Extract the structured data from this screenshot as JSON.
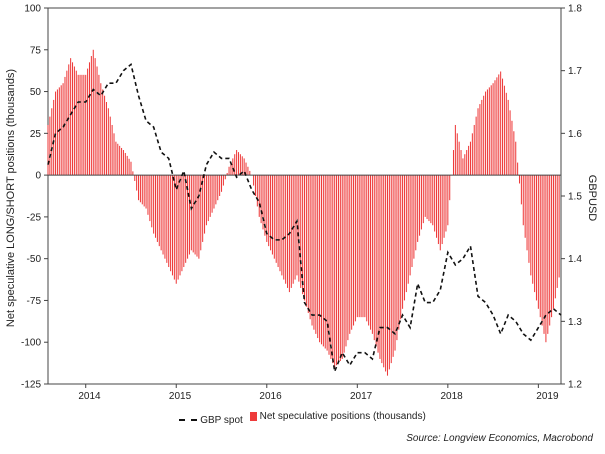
{
  "chart_data": {
    "type": "bar+line",
    "y_left": {
      "label": "Net speculative LONG/SHORT positions (thousands)",
      "ylim": [
        -125,
        100
      ],
      "ticks": [
        100,
        75,
        50,
        25,
        0,
        -25,
        -50,
        -75,
        -100,
        -125
      ],
      "tick_labels": [
        "100",
        "75",
        "50",
        "25",
        "0",
        "-25",
        "-50",
        "-75",
        "-100",
        "-125"
      ]
    },
    "y_right": {
      "label": "GBPUSD",
      "ylim": [
        1.2,
        1.8
      ],
      "ticks": [
        1.8,
        1.7,
        1.6,
        1.5,
        1.4,
        1.3,
        1.2
      ],
      "tick_labels": [
        "1.8",
        "1.7",
        "1.6",
        "1.5",
        "1.4",
        "1.3",
        "1.2"
      ]
    },
    "x_axis": {
      "range": [
        "2013-08",
        "2019-04"
      ],
      "ticks": [
        "2014",
        "2015",
        "2016",
        "2017",
        "2018",
        "2019"
      ],
      "year_start_ticks": [
        "2014-01",
        "2015-01",
        "2016-01",
        "2017-01",
        "2018-01",
        "2019-01"
      ]
    },
    "series": [
      {
        "name": "Net speculative positions (thousands)",
        "kind": "bar",
        "axis": "left",
        "color": "#ee3b3b",
        "points": [
          [
            "2013-08",
            30
          ],
          [
            "2013-09",
            50
          ],
          [
            "2013-10",
            55
          ],
          [
            "2013-11",
            70
          ],
          [
            "2013-12",
            60
          ],
          [
            "2014-01",
            60
          ],
          [
            "2014-02",
            75
          ],
          [
            "2014-03",
            55
          ],
          [
            "2014-04",
            40
          ],
          [
            "2014-05",
            20
          ],
          [
            "2014-06",
            15
          ],
          [
            "2014-07",
            8
          ],
          [
            "2014-08",
            -15
          ],
          [
            "2014-09",
            -20
          ],
          [
            "2014-10",
            -35
          ],
          [
            "2014-11",
            -45
          ],
          [
            "2014-12",
            -55
          ],
          [
            "2015-01",
            -65
          ],
          [
            "2015-02",
            -55
          ],
          [
            "2015-03",
            -45
          ],
          [
            "2015-04",
            -50
          ],
          [
            "2015-05",
            -30
          ],
          [
            "2015-06",
            -20
          ],
          [
            "2015-07",
            -10
          ],
          [
            "2015-08",
            5
          ],
          [
            "2015-09",
            15
          ],
          [
            "2015-10",
            10
          ],
          [
            "2015-11",
            0
          ],
          [
            "2015-12",
            -25
          ],
          [
            "2016-01",
            -40
          ],
          [
            "2016-02",
            -50
          ],
          [
            "2016-03",
            -60
          ],
          [
            "2016-04",
            -70
          ],
          [
            "2016-05",
            -60
          ],
          [
            "2016-06",
            -75
          ],
          [
            "2016-07",
            -90
          ],
          [
            "2016-08",
            -100
          ],
          [
            "2016-09",
            -105
          ],
          [
            "2016-10",
            -115
          ],
          [
            "2016-11",
            -110
          ],
          [
            "2016-12",
            -95
          ],
          [
            "2017-01",
            -85
          ],
          [
            "2017-02",
            -85
          ],
          [
            "2017-03",
            -95
          ],
          [
            "2017-04",
            -110
          ],
          [
            "2017-05",
            -120
          ],
          [
            "2017-06",
            -105
          ],
          [
            "2017-07",
            -80
          ],
          [
            "2017-08",
            -60
          ],
          [
            "2017-09",
            -40
          ],
          [
            "2017-10",
            -25
          ],
          [
            "2017-11",
            -30
          ],
          [
            "2017-12",
            -45
          ],
          [
            "2018-01",
            -30
          ],
          [
            "2018-02",
            30
          ],
          [
            "2018-03",
            10
          ],
          [
            "2018-04",
            20
          ],
          [
            "2018-05",
            40
          ],
          [
            "2018-06",
            50
          ],
          [
            "2018-07",
            55
          ],
          [
            "2018-08",
            62
          ],
          [
            "2018-09",
            45
          ],
          [
            "2018-10",
            20
          ],
          [
            "2018-11",
            -30
          ],
          [
            "2018-12",
            -60
          ],
          [
            "2019-01",
            -80
          ],
          [
            "2019-02",
            -100
          ],
          [
            "2019-03",
            -80
          ],
          [
            "2019-04",
            -55
          ]
        ]
      },
      {
        "name": "GBP spot",
        "kind": "line",
        "axis": "right",
        "color": "#111111",
        "points": [
          [
            "2013-08",
            1.55
          ],
          [
            "2013-09",
            1.6
          ],
          [
            "2013-10",
            1.61
          ],
          [
            "2013-11",
            1.63
          ],
          [
            "2013-12",
            1.65
          ],
          [
            "2014-01",
            1.65
          ],
          [
            "2014-02",
            1.67
          ],
          [
            "2014-03",
            1.66
          ],
          [
            "2014-04",
            1.68
          ],
          [
            "2014-05",
            1.68
          ],
          [
            "2014-06",
            1.7
          ],
          [
            "2014-07",
            1.71
          ],
          [
            "2014-08",
            1.66
          ],
          [
            "2014-09",
            1.62
          ],
          [
            "2014-10",
            1.61
          ],
          [
            "2014-11",
            1.57
          ],
          [
            "2014-12",
            1.56
          ],
          [
            "2015-01",
            1.51
          ],
          [
            "2015-02",
            1.54
          ],
          [
            "2015-03",
            1.48
          ],
          [
            "2015-04",
            1.5
          ],
          [
            "2015-05",
            1.55
          ],
          [
            "2015-06",
            1.57
          ],
          [
            "2015-07",
            1.56
          ],
          [
            "2015-08",
            1.56
          ],
          [
            "2015-09",
            1.53
          ],
          [
            "2015-10",
            1.54
          ],
          [
            "2015-11",
            1.51
          ],
          [
            "2015-12",
            1.49
          ],
          [
            "2016-01",
            1.44
          ],
          [
            "2016-02",
            1.43
          ],
          [
            "2016-03",
            1.43
          ],
          [
            "2016-04",
            1.44
          ],
          [
            "2016-05",
            1.46
          ],
          [
            "2016-06",
            1.33
          ],
          [
            "2016-07",
            1.31
          ],
          [
            "2016-08",
            1.31
          ],
          [
            "2016-09",
            1.3
          ],
          [
            "2016-10",
            1.22
          ],
          [
            "2016-11",
            1.25
          ],
          [
            "2016-12",
            1.23
          ],
          [
            "2017-01",
            1.25
          ],
          [
            "2017-02",
            1.25
          ],
          [
            "2017-03",
            1.24
          ],
          [
            "2017-04",
            1.29
          ],
          [
            "2017-05",
            1.29
          ],
          [
            "2017-06",
            1.28
          ],
          [
            "2017-07",
            1.31
          ],
          [
            "2017-08",
            1.29
          ],
          [
            "2017-09",
            1.36
          ],
          [
            "2017-10",
            1.33
          ],
          [
            "2017-11",
            1.33
          ],
          [
            "2017-12",
            1.35
          ],
          [
            "2018-01",
            1.41
          ],
          [
            "2018-02",
            1.39
          ],
          [
            "2018-03",
            1.4
          ],
          [
            "2018-04",
            1.42
          ],
          [
            "2018-05",
            1.34
          ],
          [
            "2018-06",
            1.33
          ],
          [
            "2018-07",
            1.31
          ],
          [
            "2018-08",
            1.28
          ],
          [
            "2018-09",
            1.31
          ],
          [
            "2018-10",
            1.3
          ],
          [
            "2018-11",
            1.28
          ],
          [
            "2018-12",
            1.27
          ],
          [
            "2019-01",
            1.29
          ],
          [
            "2019-02",
            1.31
          ],
          [
            "2019-03",
            1.32
          ],
          [
            "2019-04",
            1.31
          ]
        ]
      }
    ],
    "grid": false,
    "legend_position": "bottom"
  },
  "legend": {
    "line_label": "GBP spot",
    "bar_label": "Net speculative positions (thousands)"
  },
  "source": "Source: Longview Economics, Macrobond"
}
